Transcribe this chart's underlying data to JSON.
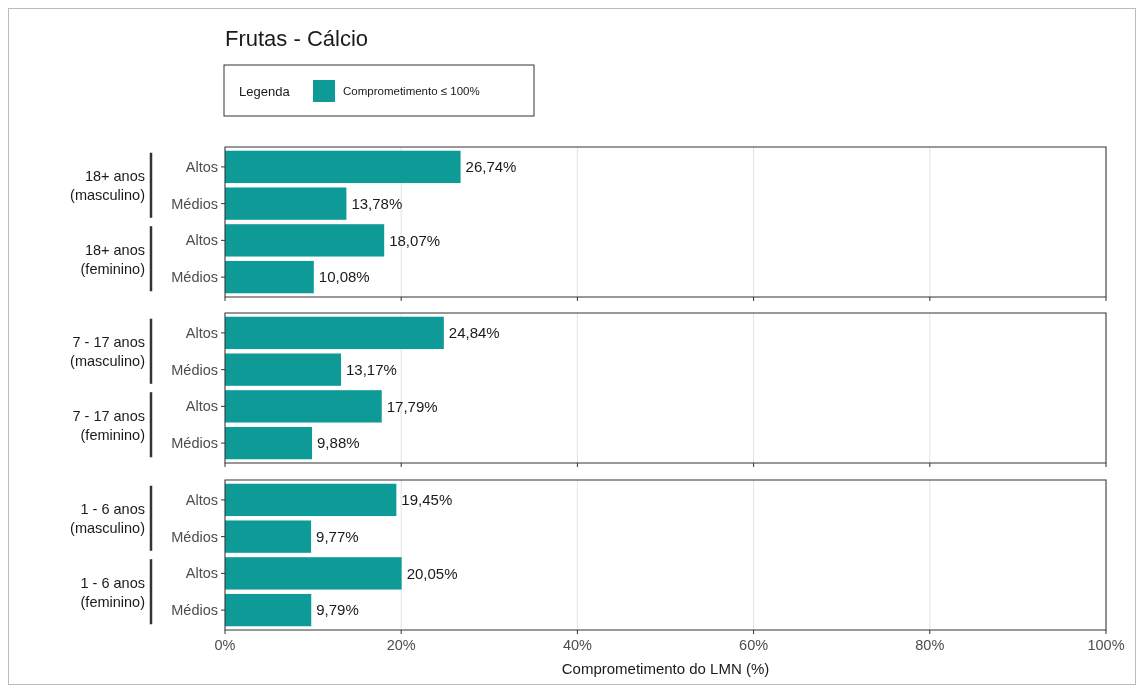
{
  "chart_data": [
    {
      "type": "bar",
      "orientation": "horizontal",
      "title": "Frutas - Cálcio",
      "legend_title": "Legenda",
      "legend": "top",
      "grid": "x",
      "tick_labels": "y",
      "categories": [
        "Altos",
        "Médios",
        "Altos",
        "Médios"
      ],
      "annotations": [
        "18+ anos (masculino)",
        "18+ anos (feminino)"
      ],
      "xlim": [
        0,
        100
      ],
      "xticks": [
        {
          "value": 0,
          "label": null
        },
        {
          "value": 20,
          "label": null
        },
        {
          "value": 40,
          "label": null
        },
        {
          "value": 60,
          "label": null
        },
        {
          "value": 80,
          "label": null
        },
        {
          "value": 100,
          "label": null
        }
      ],
      "series": [
        {
          "name": "Comprometimento ≤ 100%",
          "color": "#0e9a96",
          "values": [
            26.74,
            13.78,
            18.07,
            10.08
          ],
          "value_labels": [
            "26,74%",
            "13,78%",
            "18,07%",
            "10,08%"
          ]
        }
      ]
    },
    {
      "type": "bar",
      "orientation": "horizontal",
      "grid": "x",
      "tick_labels": "y",
      "categories": [
        "Altos",
        "Médios",
        "Altos",
        "Médios"
      ],
      "annotations": [
        "7 - 17 anos (masculino)",
        "7 - 17 anos (feminino)"
      ],
      "xlim": [
        0,
        100
      ],
      "xticks": [
        {
          "value": 0,
          "label": null
        },
        {
          "value": 20,
          "label": null
        },
        {
          "value": 40,
          "label": null
        },
        {
          "value": 60,
          "label": null
        },
        {
          "value": 80,
          "label": null
        },
        {
          "value": 100,
          "label": null
        }
      ],
      "series": [
        {
          "color": "#0e9a96",
          "values": [
            24.84,
            13.17,
            17.79,
            9.88
          ],
          "value_labels": [
            "24,84%",
            "13,17%",
            "17,79%",
            "9,88%"
          ]
        }
      ]
    },
    {
      "type": "bar",
      "orientation": "horizontal",
      "grid": "x",
      "xlabel": "Comprometimento do LMN (%)",
      "categories": [
        "Altos",
        "Médios",
        "Altos",
        "Médios"
      ],
      "annotations": [
        "1 - 6 anos (masculino)",
        "1 - 6 anos (feminino)"
      ],
      "xlim": [
        0,
        100
      ],
      "xticks": [
        {
          "value": 0,
          "label": "0%"
        },
        {
          "value": 20,
          "label": "20%"
        },
        {
          "value": 40,
          "label": "40%"
        },
        {
          "value": 60,
          "label": "60%"
        },
        {
          "value": 80,
          "label": "80%"
        },
        {
          "value": 100,
          "label": "100%"
        }
      ],
      "series": [
        {
          "color": "#0e9a96",
          "values": [
            19.45,
            9.77,
            20.05,
            9.79
          ],
          "value_labels": [
            "19,45%",
            "9,77%",
            "20,05%",
            "9,79%"
          ]
        }
      ]
    }
  ]
}
